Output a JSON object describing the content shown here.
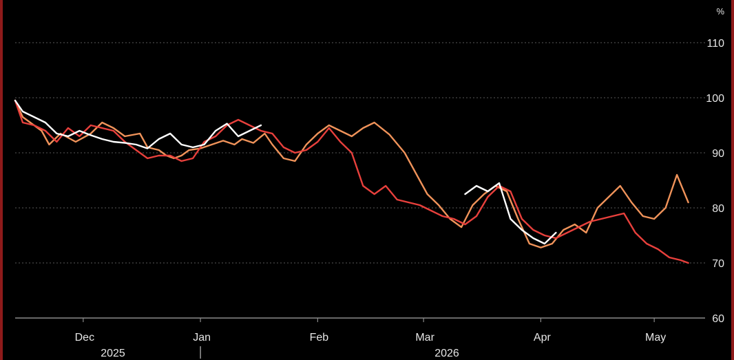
{
  "chart_data": {
    "type": "line",
    "unit_label": "%",
    "y_ticks": [
      60,
      70,
      80,
      90,
      100,
      110
    ],
    "ylim": [
      56,
      113
    ],
    "x_month_labels": [
      "Dec",
      "Jan",
      "Feb",
      "Mar",
      "Apr",
      "May"
    ],
    "x_year_labels": [
      "2025",
      "2026"
    ],
    "grid": "horizontal dotted",
    "colors": {
      "background": "#000000",
      "border": "#8e1a1a",
      "white": "#ffffff",
      "orange": "#f0935a",
      "red": "#e8403c"
    },
    "series": [
      {
        "color": "#f0935a",
        "x": [
          "2025-11-13",
          "2025-11-15",
          "2025-11-20",
          "2025-11-22",
          "2025-11-25",
          "2025-11-29",
          "2025-12-03",
          "2025-12-06",
          "2025-12-09",
          "2025-12-12",
          "2025-12-16",
          "2025-12-18",
          "2025-12-21",
          "2025-12-23",
          "2025-12-25",
          "2025-12-27",
          "2025-12-29",
          "2026-01-01",
          "2026-01-04",
          "2026-01-07",
          "2026-01-10",
          "2026-01-12",
          "2026-01-15",
          "2026-01-18",
          "2026-01-20",
          "2026-01-23",
          "2026-01-26",
          "2026-01-29",
          "2026-02-01",
          "2026-02-04",
          "2026-02-07",
          "2026-02-10",
          "2026-02-13",
          "2026-02-16",
          "2026-02-20",
          "2026-02-24",
          "2026-02-28",
          "2026-03-02",
          "2026-03-05",
          "2026-03-08",
          "2026-03-11",
          "2026-03-14",
          "2026-03-17",
          "2026-03-20",
          "2026-03-23",
          "2026-03-26",
          "2026-03-29",
          "2026-04-01",
          "2026-04-04",
          "2026-04-07",
          "2026-04-10",
          "2026-04-13",
          "2026-04-16",
          "2026-04-19",
          "2026-04-22",
          "2026-04-25",
          "2026-04-28",
          "2026-05-01",
          "2026-05-04",
          "2026-05-07",
          "2026-05-10"
        ],
        "y": [
          99.5,
          96.5,
          94,
          91.5,
          93.5,
          92,
          93.5,
          95.5,
          94.5,
          93,
          93.5,
          91,
          90.5,
          89.5,
          89,
          89.5,
          90.5,
          90.8,
          91.5,
          92.2,
          91.5,
          92.5,
          91.8,
          93.5,
          91.5,
          89,
          88.5,
          91.5,
          93.5,
          95,
          94,
          93,
          94.5,
          95.5,
          93.3,
          90,
          85,
          82.5,
          80.5,
          78,
          76.5,
          80.5,
          82.5,
          84,
          83,
          78,
          73.5,
          72.8,
          73.5,
          76,
          77,
          75.5,
          80,
          82,
          84,
          81,
          78.5,
          78,
          80,
          86,
          81
        ]
      },
      {
        "color": "#e8403c",
        "x": [
          "2025-11-13",
          "2025-11-15",
          "2025-11-18",
          "2025-11-21",
          "2025-11-24",
          "2025-11-27",
          "2025-11-30",
          "2025-12-03",
          "2025-12-06",
          "2025-12-09",
          "2025-12-12",
          "2025-12-15",
          "2025-12-18",
          "2025-12-21",
          "2025-12-24",
          "2025-12-27",
          "2025-12-30",
          "2026-01-02",
          "2026-01-05",
          "2026-01-08",
          "2026-01-11",
          "2026-01-14",
          "2026-01-17",
          "2026-01-20",
          "2026-01-23",
          "2026-01-26",
          "2026-01-29",
          "2026-02-01",
          "2026-02-04",
          "2026-02-07",
          "2026-02-10",
          "2026-02-13",
          "2026-02-16",
          "2026-02-19",
          "2026-02-22",
          "2026-02-25",
          "2026-02-28",
          "2026-03-03",
          "2026-03-06",
          "2026-03-09",
          "2026-03-12",
          "2026-03-15",
          "2026-03-18",
          "2026-03-21",
          "2026-03-24",
          "2026-03-27",
          "2026-03-30",
          "2026-04-02",
          "2026-04-05",
          "2026-04-08",
          "2026-04-11",
          "2026-04-14",
          "2026-04-17",
          "2026-04-20",
          "2026-04-23",
          "2026-04-26",
          "2026-04-29",
          "2026-05-02",
          "2026-05-05",
          "2026-05-08",
          "2026-05-10"
        ],
        "y": [
          99.5,
          95.5,
          95,
          94,
          92,
          94.5,
          93,
          95,
          94.5,
          94,
          92,
          90.5,
          89,
          89.5,
          89.5,
          88.5,
          89,
          92,
          93,
          95,
          96,
          95,
          94,
          93.5,
          91,
          90,
          90.5,
          92,
          94.5,
          92,
          90,
          84,
          82.5,
          84,
          81.5,
          81,
          80.5,
          79.5,
          78.5,
          78,
          77,
          78.5,
          82,
          84,
          83,
          78,
          76,
          75,
          74.5,
          75.5,
          76.5,
          77.5,
          78,
          78.5,
          79,
          75.5,
          73.5,
          72.5,
          71,
          70.5,
          70
        ]
      },
      {
        "color": "#ffffff",
        "x": [
          "2025-11-13",
          "2025-11-15",
          "2025-11-18",
          "2025-11-21",
          "2025-11-24",
          "2025-11-27",
          "2025-11-30",
          "2025-12-03",
          "2025-12-06",
          "2025-12-09",
          "2025-12-12",
          "2025-12-15",
          "2025-12-18",
          "2025-12-21",
          "2025-12-24",
          "2025-12-27",
          "2025-12-30",
          "2026-01-02",
          "2026-01-05",
          "2026-01-08",
          "2026-01-11",
          "2026-01-14",
          "2026-01-17"
        ],
        "y": [
          99.5,
          97.5,
          96.5,
          95.5,
          93.5,
          93,
          94,
          93.2,
          92.5,
          92,
          91.8,
          91.5,
          90.8,
          92.5,
          93.5,
          91.5,
          91,
          91.5,
          94,
          95.3,
          93,
          94,
          95
        ]
      },
      {
        "color": "#ffffff",
        "x": [
          "2026-03-12",
          "2026-03-15",
          "2026-03-18",
          "2026-03-21",
          "2026-03-24",
          "2026-03-27",
          "2026-03-30",
          "2026-04-02",
          "2026-04-05"
        ],
        "y": [
          82.5,
          84,
          83,
          84.5,
          78,
          76,
          74.5,
          73.5,
          75.5
        ]
      }
    ]
  }
}
